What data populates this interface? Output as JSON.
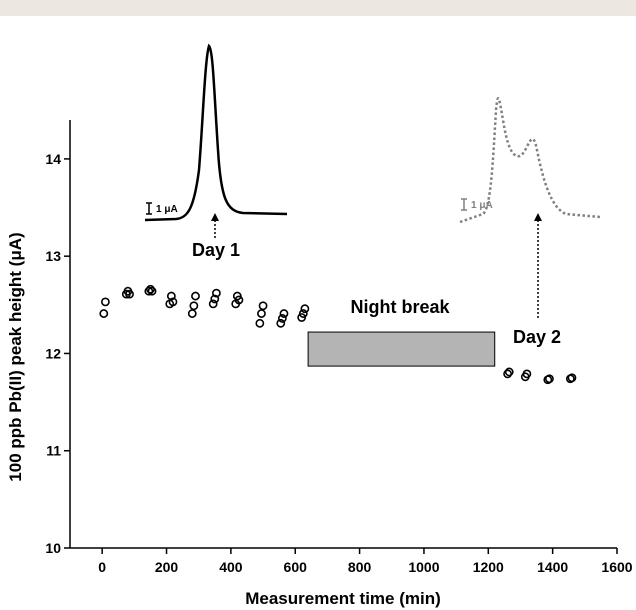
{
  "chart_data": {
    "type": "scatter",
    "xlabel": "Measurement time (min)",
    "ylabel": "100 ppb Pb(II) peak height (μA)",
    "xlim": [
      -100,
      1600
    ],
    "ylim": [
      10,
      14.4
    ],
    "x_ticks": [
      0,
      200,
      400,
      600,
      800,
      1000,
      1200,
      1400,
      1600
    ],
    "y_ticks": [
      10,
      11,
      12,
      13,
      14
    ],
    "grid": false,
    "series": [
      {
        "marker": "open-circle",
        "points": [
          [
            5,
            12.41
          ],
          [
            10,
            12.53
          ],
          [
            75,
            12.61
          ],
          [
            80,
            12.64
          ],
          [
            85,
            12.61
          ],
          [
            145,
            12.64
          ],
          [
            150,
            12.66
          ],
          [
            155,
            12.64
          ],
          [
            210,
            12.51
          ],
          [
            215,
            12.59
          ],
          [
            220,
            12.53
          ],
          [
            280,
            12.41
          ],
          [
            285,
            12.49
          ],
          [
            290,
            12.59
          ],
          [
            345,
            12.51
          ],
          [
            350,
            12.56
          ],
          [
            355,
            12.62
          ],
          [
            415,
            12.51
          ],
          [
            420,
            12.59
          ],
          [
            425,
            12.55
          ],
          [
            490,
            12.31
          ],
          [
            495,
            12.41
          ],
          [
            500,
            12.49
          ],
          [
            555,
            12.31
          ],
          [
            560,
            12.36
          ],
          [
            565,
            12.41
          ],
          [
            620,
            12.37
          ],
          [
            625,
            12.41
          ],
          [
            630,
            12.46
          ],
          [
            1260,
            11.79
          ],
          [
            1265,
            11.81
          ],
          [
            1315,
            11.76
          ],
          [
            1320,
            11.79
          ],
          [
            1385,
            11.73
          ],
          [
            1390,
            11.74
          ],
          [
            1455,
            11.74
          ],
          [
            1460,
            11.75
          ]
        ]
      }
    ],
    "annotations": {
      "day1": "Day 1",
      "day2": "Day 2",
      "night_break": "Night break",
      "scale_bar": "1 μA"
    },
    "night_break_box": {
      "x_start": 640,
      "x_end": 1220,
      "y_low": 11.87,
      "y_high": 12.22,
      "color": "#b4b4b4"
    },
    "insets": [
      {
        "name": "day1-voltammogram",
        "style": "solid",
        "color": "#000000"
      },
      {
        "name": "day2-voltammogram",
        "style": "dotted",
        "color": "#808080"
      }
    ]
  }
}
